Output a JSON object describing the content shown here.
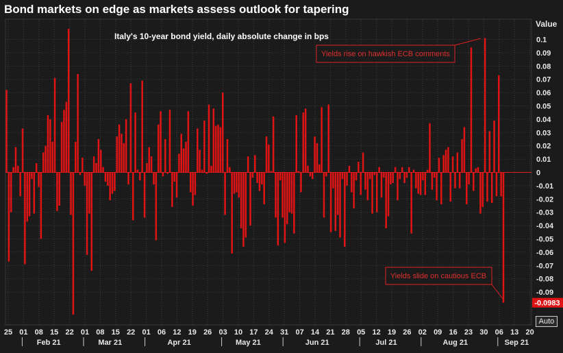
{
  "header": {
    "title": "Bond markets on edge as markets assess outlook for tapering"
  },
  "chart_data": {
    "type": "bar",
    "subtitle": "Italy's 10-year bond yield, daily absolute change in bps",
    "ylabel": "Value",
    "ylim": [
      -0.11,
      0.115
    ],
    "yticks": [
      0.1,
      0.09,
      0.08,
      0.07,
      0.06,
      0.05,
      0.04,
      0.03,
      0.02,
      0.01,
      0,
      -0.01,
      -0.02,
      -0.03,
      -0.04,
      -0.05,
      -0.06,
      -0.07,
      -0.08,
      -0.09
    ],
    "last_value_label": "-0.0983",
    "x_day_ticks": [
      "25",
      "01",
      "08",
      "15",
      "22",
      "01",
      "08",
      "15",
      "22",
      "01",
      "06",
      "12",
      "19",
      "26",
      "03",
      "10",
      "17",
      "24",
      "31",
      "07",
      "14",
      "21",
      "28",
      "05",
      "12",
      "19",
      "26",
      "02",
      "09",
      "16",
      "23",
      "30",
      "06",
      "13",
      "20"
    ],
    "x_month_labels": [
      "Feb 21",
      "Mar 21",
      "Apr 21",
      "May 21",
      "Jun 21",
      "Jul 21",
      "Aug 21",
      "Sep 21"
    ],
    "annotations": [
      {
        "text": "Yields rise on hawkish ECB comments"
      },
      {
        "text": "Yields slide on cautious ECB"
      }
    ],
    "values": [
      0.062,
      -0.067,
      -0.03,
      0.004,
      0.019,
      0.005,
      -0.018,
      0.033,
      -0.069,
      -0.037,
      -0.033,
      -0.005,
      -0.031,
      0.007,
      -0.011,
      -0.05,
      0.015,
      0.02,
      0.043,
      0.04,
      0.023,
      0.071,
      -0.029,
      -0.025,
      0.038,
      0.047,
      0.053,
      0.108,
      -0.032,
      -0.107,
      0.023,
      0.074,
      -0.002,
      0.011,
      -0.01,
      -0.062,
      -0.031,
      -0.074,
      0.012,
      0.007,
      0.025,
      0.017,
      0.004,
      -0.007,
      -0.01,
      -0.021,
      -0.016,
      -0.014,
      0.027,
      0.036,
      0.029,
      0.022,
      0.04,
      -0.009,
      0.067,
      -0.036,
      0.045,
      0.002,
      -0.006,
      0.069,
      -0.034,
      0.007,
      0.019,
      0.012,
      -0.009,
      -0.051,
      0.036,
      0.046,
      -0.003,
      0.025,
      -0.001,
      0.047,
      -0.026,
      -0.007,
      -0.019,
      0.014,
      0.029,
      0.018,
      0.023,
      0.046,
      -0.015,
      -0.025,
      -0.017,
      0.033,
      0.017,
      0.002,
      0.039,
      -0.001,
      0.051,
      0.005,
      0.048,
      0.035,
      0.036,
      0.034,
      0.06,
      -0.032,
      0.025,
      0.004,
      -0.061,
      -0.016,
      -0.015,
      -0.019,
      -0.042,
      -0.056,
      -0.049,
      0.012,
      -0.04,
      -0.004,
      0.013,
      -0.008,
      -0.014,
      -0.009,
      -0.024,
      0.027,
      0.021,
      0.001,
      0.042,
      -0.034,
      -0.055,
      -0.006,
      -0.034,
      -0.053,
      -0.039,
      -0.03,
      -0.031,
      -0.046,
      0.043,
      0.001,
      -0.015,
      0.045,
      0.048,
      0.005,
      -0.003,
      -0.005,
      0.027,
      0.022,
      0.006,
      0.049,
      -0.034,
      -0.003,
      0.051,
      -0.045,
      -0.012,
      -0.044,
      -0.032,
      -0.049,
      -0.005,
      -0.056,
      -0.01,
      0.005,
      -0.015,
      -0.027,
      -0.006,
      0.008,
      -0.017,
      0.015,
      -0.013,
      -0.021,
      -0.005,
      -0.031,
      -0.002,
      -0.03,
      0.004,
      -0.019,
      -0.004,
      -0.042,
      -0.033,
      -0.009,
      -0.008,
      0.004,
      -0.021,
      -0.005,
      0.004,
      -0.008,
      -0.004,
      0.004,
      -0.046,
      0.002,
      -0.012,
      -0.016,
      -0.017,
      -0.006,
      -0.017,
      0.002,
      0.037,
      -0.013,
      -0.004,
      -0.021,
      0.011,
      -0.024,
      0.013,
      0.017,
      0.019,
      -0.022,
      0.012,
      -0.012,
      0.015,
      -0.012,
      0.025,
      0.034,
      -0.024,
      -0.009,
      0.094,
      -0.014,
      0.003,
      0.004,
      -0.031,
      -0.026,
      0.101,
      -0.022,
      0.031,
      -0.023,
      0.039,
      -0.018,
      0.073,
      -0.018,
      -0.098
    ]
  }
}
